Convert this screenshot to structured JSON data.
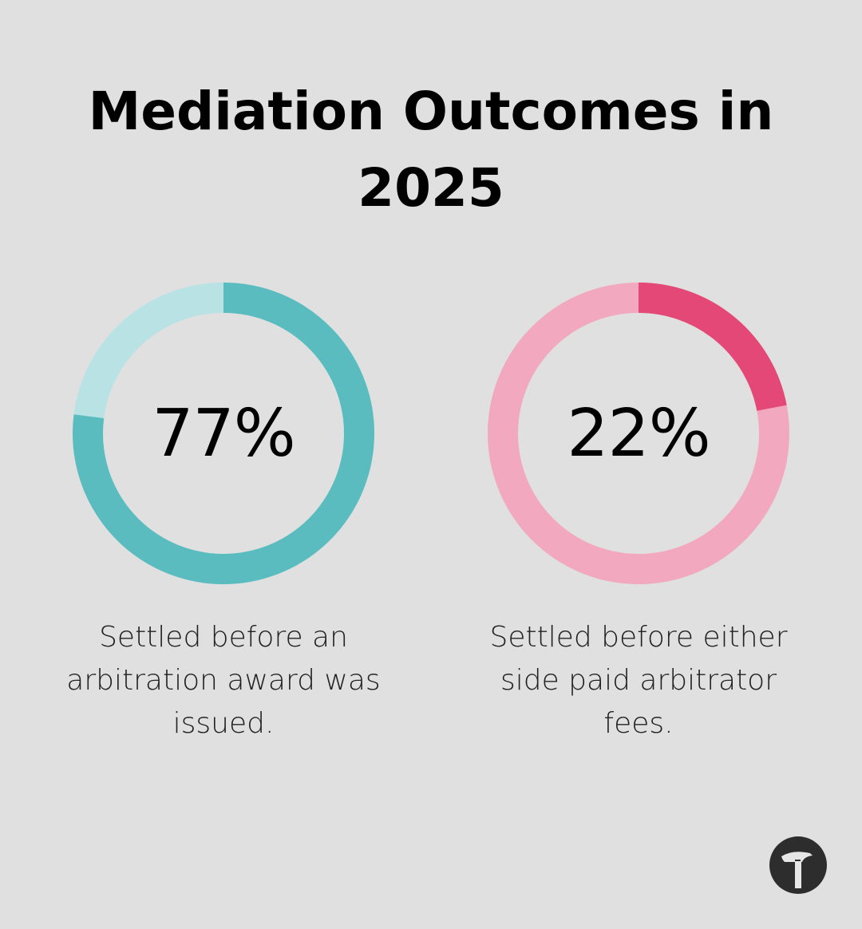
{
  "chart_data": [
    {
      "type": "pie",
      "title": "Mediation Outcomes in 2025",
      "value_percent": 77,
      "label": "77%",
      "caption": "Settled before an arbitration award was issued.",
      "colors": {
        "filled": "#5bbcc0",
        "remainder": "#b9e2e5"
      }
    },
    {
      "type": "pie",
      "title": "Mediation Outcomes in 2025",
      "value_percent": 22,
      "label": "22%",
      "caption": "Settled before either side paid arbitrator fees.",
      "colors": {
        "filled": "#e44877",
        "remainder": "#f2a9bf"
      }
    }
  ],
  "page": {
    "title": "Mediation Outcomes in 2025",
    "background": "#dfe0df"
  },
  "logo": {
    "icon": "hammer-icon"
  }
}
